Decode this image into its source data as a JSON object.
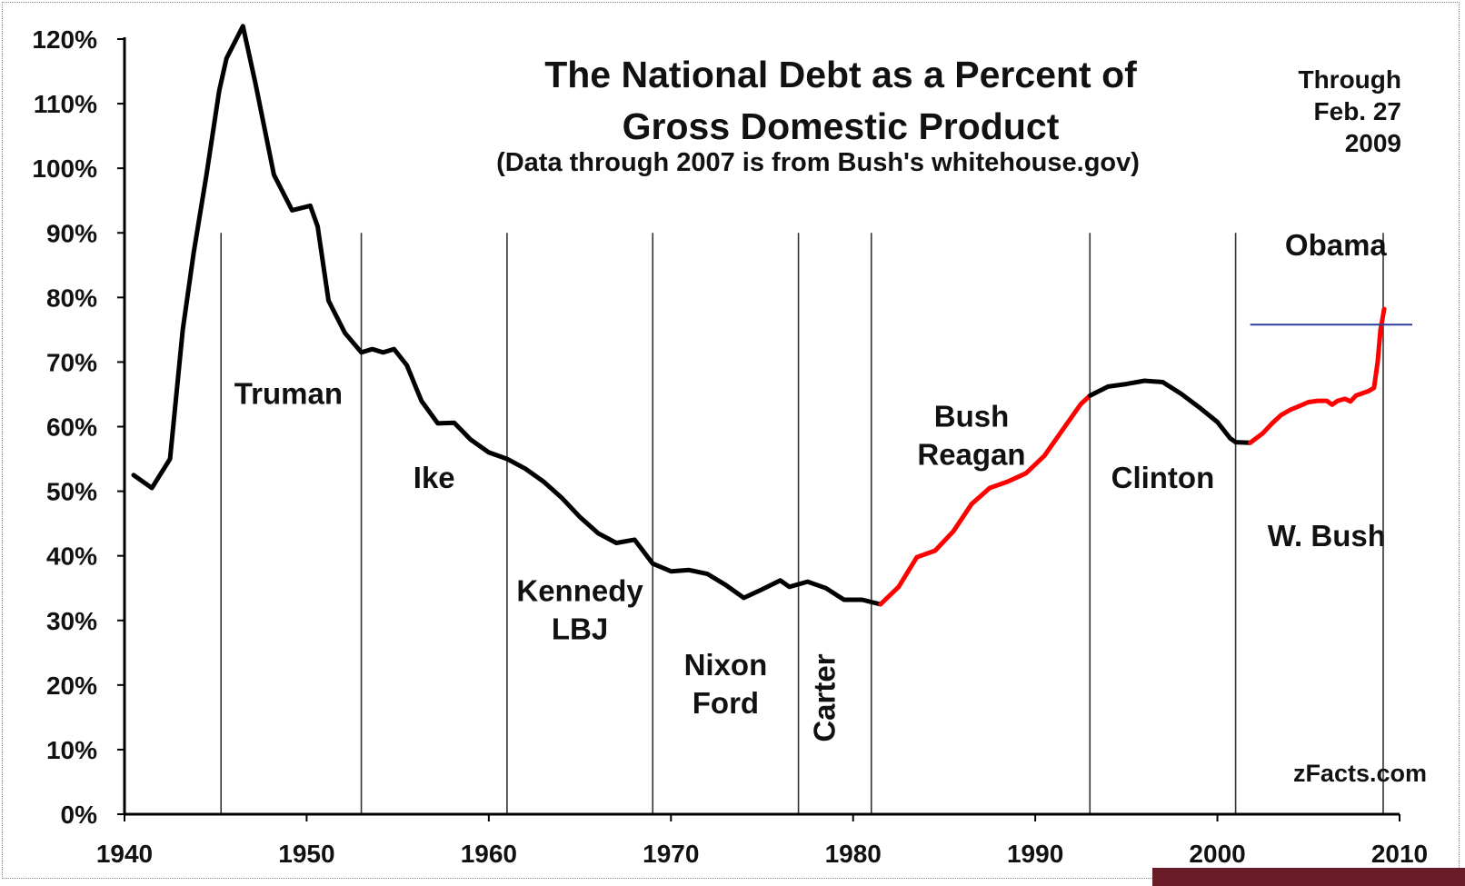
{
  "chart_data": {
    "type": "line",
    "title": [
      "The National Debt as a Percent of",
      "Gross Domestic Product"
    ],
    "subtitle": "(Data through 2007 is from Bush's whitehouse.gov)",
    "note": [
      "Through",
      "Feb. 27",
      "2009"
    ],
    "credit": "zFacts.com",
    "xlim": [
      1940,
      2010
    ],
    "ylim": [
      0,
      120
    ],
    "x_ticks": [
      1940,
      1950,
      1960,
      1970,
      1980,
      1990,
      2000,
      2010
    ],
    "y_ticks": [
      "0%",
      "10%",
      "20%",
      "30%",
      "40%",
      "50%",
      "60%",
      "70%",
      "80%",
      "90%",
      "100%",
      "110%",
      "120%"
    ],
    "grid": false,
    "colors": {
      "democrat": "#000000",
      "republican": "#ff0000",
      "reference": "#2a3f9a"
    },
    "terms": [
      {
        "start": 1945.3,
        "end": 1953.0,
        "label": [
          "Truman"
        ],
        "lx": 1949.0,
        "ly": 63.5
      },
      {
        "start": 1953.0,
        "end": 1961.0,
        "label": [
          "Ike"
        ],
        "lx": 1957.0,
        "ly": 50.5
      },
      {
        "start": 1961.0,
        "end": 1969.0,
        "label": [
          "Kennedy",
          "LBJ"
        ],
        "lx": 1965.0,
        "ly": 33.0
      },
      {
        "start": 1969.0,
        "end": 1977.0,
        "label": [
          "Nixon",
          "Ford"
        ],
        "lx": 1973.0,
        "ly": 21.5
      },
      {
        "start": 1977.0,
        "end": 1981.0,
        "label": [
          "Carter"
        ],
        "lx": 1979.0,
        "ly": 18.0,
        "rotate": true
      },
      {
        "start": 1981.0,
        "end": 1993.0,
        "label": [
          "Bush",
          "Reagan"
        ],
        "lx": 1986.5,
        "ly": 60.0
      },
      {
        "start": 1993.0,
        "end": 2001.0,
        "label": [
          "Clinton"
        ],
        "lx": 1997.0,
        "ly": 50.5
      },
      {
        "start": 2001.0,
        "end": 2009.1,
        "label": [
          "W. Bush"
        ],
        "lx": 2006.0,
        "ly": 41.5
      },
      {
        "start": 2009.1,
        "end": 2010.0,
        "label": [
          "Obama"
        ],
        "lx": 2006.5,
        "ly": 86.5
      }
    ],
    "reference_line": {
      "y": 75.8,
      "x_start": 2001.8,
      "x_end": 2010.0
    },
    "series": [
      {
        "color_key": "democrat",
        "x": [
          1940.5,
          1941.5,
          1942.5,
          1943.2,
          1943.8,
          1944.5,
          1945.2,
          1945.6,
          1946.5,
          1947.2,
          1948.2,
          1949.2,
          1950.2,
          1950.6,
          1951.2,
          1952.1,
          1953.0,
          1953.6,
          1954.2,
          1954.8,
          1955.5,
          1956.3,
          1957.2,
          1958.1,
          1959.0,
          1960.0,
          1961.0,
          1962.0,
          1963.0,
          1964.0,
          1965.0,
          1966.0,
          1967.0,
          1968.0,
          1969.0,
          1970.0,
          1971.0,
          1972.0,
          1973.0,
          1974.0,
          1975.0,
          1976.0,
          1976.5,
          1977.5,
          1978.5,
          1979.5,
          1980.5,
          1981.5
        ],
        "y": [
          52.5,
          50.5,
          55,
          75,
          87,
          99,
          112,
          117,
          122,
          113,
          99,
          93.5,
          94.2,
          91,
          79.5,
          74.5,
          71.5,
          72,
          71.5,
          72,
          69.5,
          64,
          60.5,
          60.6,
          58,
          56,
          55,
          53.5,
          51.5,
          49,
          46,
          43.5,
          42,
          42.5,
          38.8,
          37.6,
          37.8,
          37.2,
          35.5,
          33.5,
          34.8,
          36.2,
          35.2,
          36,
          35,
          33.2,
          33.2,
          32.5
        ]
      },
      {
        "color_key": "republican",
        "x": [
          1981.5,
          1982.5,
          1983.5,
          1984.5,
          1985.5,
          1986.5,
          1987.5,
          1988.5,
          1989.5,
          1990.5,
          1991.5,
          1992.5,
          1993.0
        ],
        "y": [
          32.5,
          35.2,
          39.8,
          40.8,
          43.8,
          48.0,
          50.5,
          51.5,
          52.8,
          55.5,
          59.5,
          63.5,
          64.8
        ]
      },
      {
        "color_key": "democrat",
        "x": [
          1993.0,
          1994.0,
          1995.0,
          1996.0,
          1997.0,
          1998.0,
          1999.0,
          2000.0,
          2000.7,
          2001.0,
          2001.8
        ],
        "y": [
          64.8,
          66.2,
          66.6,
          67.1,
          66.9,
          65.1,
          63.0,
          60.7,
          58.2,
          57.6,
          57.5
        ]
      },
      {
        "color_key": "republican",
        "x": [
          2001.8,
          2002.5,
          2003.0,
          2003.5,
          2004.0,
          2004.5,
          2005.0,
          2005.5,
          2006.0,
          2006.3,
          2006.6,
          2007.0,
          2007.3,
          2007.6,
          2008.0,
          2008.3,
          2008.6,
          2008.8,
          2008.95,
          2009.05,
          2009.15
        ],
        "y": [
          57.5,
          59.0,
          60.5,
          61.8,
          62.6,
          63.2,
          63.8,
          64.0,
          64.0,
          63.4,
          64.0,
          64.3,
          63.9,
          64.8,
          65.2,
          65.5,
          66.0,
          70.0,
          75.0,
          76.5,
          78.2
        ]
      }
    ]
  }
}
